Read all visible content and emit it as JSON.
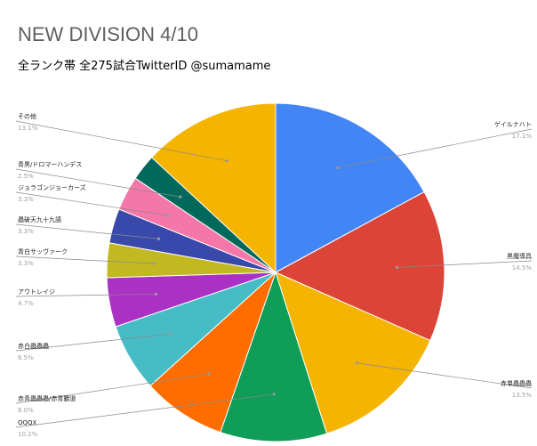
{
  "chart_data": {
    "type": "pie",
    "title": "NEW DIVISION 4/10",
    "subtitle": "全ランク帯 全275試合TwitterID @sumamame",
    "slices": [
      {
        "label": "ゲイルナハト",
        "value": 17.1,
        "pct_label": "17.1%",
        "color": "#4285f4"
      },
      {
        "label": "黒魔導具",
        "value": 14.5,
        "pct_label": "14.5%",
        "color": "#db4437"
      },
      {
        "label": "赤単蟲蟲蟲",
        "value": 13.5,
        "pct_label": "13.5%",
        "color": "#f4b400"
      },
      {
        "label": "QQQX",
        "value": 10.2,
        "pct_label": "10.2%",
        "color": "#0f9d58"
      },
      {
        "label": "赤青蟲蟲蟲/赤青覇道",
        "value": 8.0,
        "pct_label": "8.0%",
        "color": "#ff6d00"
      },
      {
        "label": "赤白蟲蟲蟲",
        "value": 6.5,
        "pct_label": "6.5%",
        "color": "#46bdc6"
      },
      {
        "label": "アウトレイジ",
        "value": 4.7,
        "pct_label": "4.7%",
        "color": "#ab30c4"
      },
      {
        "label": "青白サッヴァーク",
        "value": 3.3,
        "pct_label": "3.3%",
        "color": "#c2b821"
      },
      {
        "label": "蟲破天九十九語",
        "value": 3.3,
        "pct_label": "3.3%",
        "color": "#3949ab"
      },
      {
        "label": "ジョラゴンジョーカーズ",
        "value": 3.3,
        "pct_label": "3.3%",
        "color": "#f576a8"
      },
      {
        "label": "青黒/ドロマーハンデス",
        "value": 2.5,
        "pct_label": "2.5%",
        "color": "#00695c"
      },
      {
        "label": "その他",
        "value": 13.1,
        "pct_label": "13.1%",
        "color": "#f4b400"
      }
    ],
    "legend": "none",
    "label_position": "outside-leader-lines"
  }
}
